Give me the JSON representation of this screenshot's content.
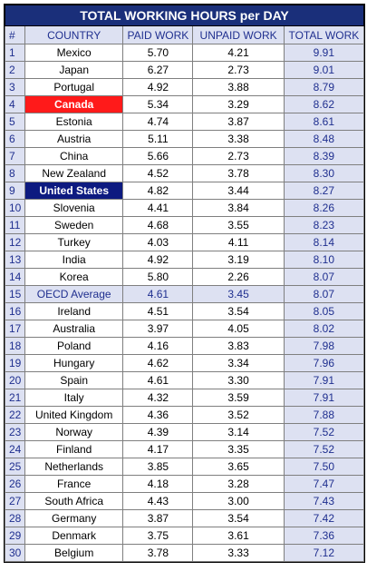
{
  "table": {
    "title": "TOTAL WORKING HOURS per DAY",
    "header": [
      "#",
      "COUNTRY",
      "PAID WORK",
      "UNPAID WORK",
      "TOTAL WORK"
    ],
    "rows": [
      [
        "1",
        "Mexico",
        "5.70",
        "4.21",
        "9.91"
      ],
      [
        "2",
        "Japan",
        "6.27",
        "2.73",
        "9.01"
      ],
      [
        "3",
        "Portugal",
        "4.92",
        "3.88",
        "8.79"
      ],
      [
        "4",
        "Canada",
        "5.34",
        "3.29",
        "8.62"
      ],
      [
        "5",
        "Estonia",
        "4.74",
        "3.87",
        "8.61"
      ],
      [
        "6",
        "Austria",
        "5.11",
        "3.38",
        "8.48"
      ],
      [
        "7",
        "China",
        "5.66",
        "2.73",
        "8.39"
      ],
      [
        "8",
        "New Zealand",
        "4.52",
        "3.78",
        "8.30"
      ],
      [
        "9",
        "United States",
        "4.82",
        "3.44",
        "8.27"
      ],
      [
        "10",
        "Slovenia",
        "4.41",
        "3.84",
        "8.26"
      ],
      [
        "11",
        "Sweden",
        "4.68",
        "3.55",
        "8.23"
      ],
      [
        "12",
        "Turkey",
        "4.03",
        "4.11",
        "8.14"
      ],
      [
        "13",
        "India",
        "4.92",
        "3.19",
        "8.10"
      ],
      [
        "14",
        "Korea",
        "5.80",
        "2.26",
        "8.07"
      ],
      [
        "15",
        "OECD Average",
        "4.61",
        "3.45",
        "8.07"
      ],
      [
        "16",
        "Ireland",
        "4.51",
        "3.54",
        "8.05"
      ],
      [
        "17",
        "Australia",
        "3.97",
        "4.05",
        "8.02"
      ],
      [
        "18",
        "Poland",
        "4.16",
        "3.83",
        "7.98"
      ],
      [
        "19",
        "Hungary",
        "4.62",
        "3.34",
        "7.96"
      ],
      [
        "20",
        "Spain",
        "4.61",
        "3.30",
        "7.91"
      ],
      [
        "21",
        "Italy",
        "4.32",
        "3.59",
        "7.91"
      ],
      [
        "22",
        "United Kingdom",
        "4.36",
        "3.52",
        "7.88"
      ],
      [
        "23",
        "Norway",
        "4.39",
        "3.14",
        "7.52"
      ],
      [
        "24",
        "Finland",
        "4.17",
        "3.35",
        "7.52"
      ],
      [
        "25",
        "Netherlands",
        "3.85",
        "3.65",
        "7.50"
      ],
      [
        "26",
        "France",
        "4.18",
        "3.28",
        "7.47"
      ],
      [
        "27",
        "South Africa",
        "4.43",
        "3.00",
        "7.43"
      ],
      [
        "28",
        "Germany",
        "3.87",
        "3.54",
        "7.42"
      ],
      [
        "29",
        "Denmark",
        "3.75",
        "3.61",
        "7.36"
      ],
      [
        "30",
        "Belgium",
        "3.78",
        "3.33",
        "7.12"
      ]
    ]
  }
}
